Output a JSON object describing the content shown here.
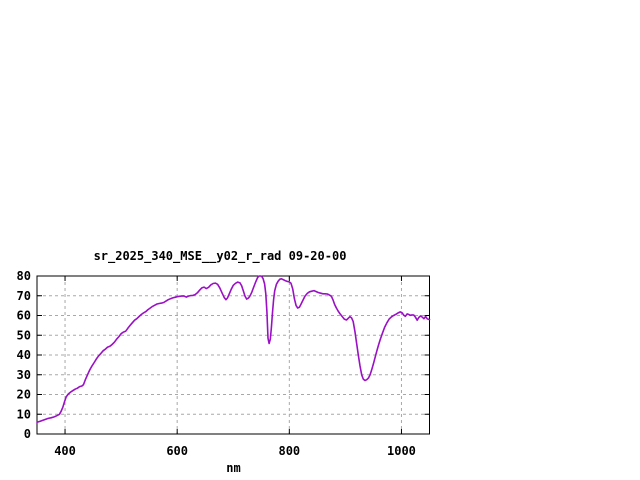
{
  "window": {
    "background_color": "#ffffff"
  },
  "chart_data": {
    "type": "line",
    "title": "sr_2025_340_MSE__y02_r_rad 09-20-00",
    "xlabel": "nm",
    "ylabel": "",
    "xlim": [
      350,
      1050
    ],
    "ylim": [
      0,
      80
    ],
    "xticks": [
      400,
      600,
      800,
      1000
    ],
    "yticks": [
      0,
      10,
      20,
      30,
      40,
      50,
      60,
      70,
      80
    ],
    "grid": true,
    "legend_position": "none",
    "line_color": "#9a10c4",
    "grid_color": "#a8a8a8",
    "axis_color": "#000000",
    "series": [
      {
        "name": "sr_2025_340_MSE__y02_r_rad",
        "x_unit": "nm",
        "points": [
          [
            350,
            5.9
          ],
          [
            355,
            6.4
          ],
          [
            360,
            6.9
          ],
          [
            365,
            7.4
          ],
          [
            370,
            7.9
          ],
          [
            375,
            8.2
          ],
          [
            380,
            8.6
          ],
          [
            385,
            9.2
          ],
          [
            390,
            10
          ],
          [
            393,
            11.5
          ],
          [
            396,
            13.5
          ],
          [
            399,
            16.3
          ],
          [
            402,
            18.8
          ],
          [
            406,
            20.3
          ],
          [
            410,
            21.2
          ],
          [
            414,
            22
          ],
          [
            418,
            22.7
          ],
          [
            422,
            23.2
          ],
          [
            426,
            24
          ],
          [
            430,
            24.3
          ],
          [
            433,
            25
          ],
          [
            436,
            27.3
          ],
          [
            440,
            30
          ],
          [
            444,
            32.4
          ],
          [
            448,
            34.5
          ],
          [
            452,
            36.2
          ],
          [
            456,
            38
          ],
          [
            460,
            39.6
          ],
          [
            464,
            40.8
          ],
          [
            468,
            42.2
          ],
          [
            472,
            43
          ],
          [
            476,
            44
          ],
          [
            480,
            44.4
          ],
          [
            484,
            45.3
          ],
          [
            488,
            46.5
          ],
          [
            492,
            48
          ],
          [
            496,
            49.3
          ],
          [
            500,
            50.8
          ],
          [
            504,
            51.6
          ],
          [
            508,
            52
          ],
          [
            512,
            53.5
          ],
          [
            516,
            55
          ],
          [
            520,
            56.3
          ],
          [
            524,
            57.6
          ],
          [
            528,
            58.4
          ],
          [
            532,
            59.5
          ],
          [
            536,
            60.5
          ],
          [
            540,
            61.3
          ],
          [
            544,
            62
          ],
          [
            548,
            63
          ],
          [
            552,
            63.8
          ],
          [
            556,
            64.6
          ],
          [
            560,
            65.2
          ],
          [
            564,
            65.8
          ],
          [
            568,
            66.1
          ],
          [
            572,
            66.3
          ],
          [
            576,
            66.6
          ],
          [
            580,
            67.3
          ],
          [
            584,
            68
          ],
          [
            588,
            68.5
          ],
          [
            592,
            68.9
          ],
          [
            596,
            69.2
          ],
          [
            600,
            69.5
          ],
          [
            604,
            69.7
          ],
          [
            608,
            69.8
          ],
          [
            612,
            69.9
          ],
          [
            616,
            69.3
          ],
          [
            620,
            69.8
          ],
          [
            624,
            70.1
          ],
          [
            628,
            70.2
          ],
          [
            632,
            70.6
          ],
          [
            636,
            71.5
          ],
          [
            640,
            72.8
          ],
          [
            644,
            74
          ],
          [
            648,
            74.4
          ],
          [
            652,
            73.6
          ],
          [
            656,
            74.3
          ],
          [
            660,
            75.5
          ],
          [
            664,
            76.2
          ],
          [
            668,
            76.4
          ],
          [
            672,
            75.8
          ],
          [
            676,
            74
          ],
          [
            680,
            71.5
          ],
          [
            684,
            69
          ],
          [
            687,
            68
          ],
          [
            690,
            69
          ],
          [
            693,
            71
          ],
          [
            696,
            73
          ],
          [
            700,
            75.3
          ],
          [
            704,
            76.3
          ],
          [
            708,
            76.9
          ],
          [
            712,
            76.5
          ],
          [
            715,
            75
          ],
          [
            718,
            72.5
          ],
          [
            721,
            69.8
          ],
          [
            724,
            68.3
          ],
          [
            727,
            68.8
          ],
          [
            730,
            70
          ],
          [
            733,
            71.8
          ],
          [
            736,
            74
          ],
          [
            740,
            77
          ],
          [
            743,
            79
          ],
          [
            745,
            79.8
          ],
          [
            747,
            80
          ],
          [
            749,
            80
          ],
          [
            751,
            79.7
          ],
          [
            753,
            78.8
          ],
          [
            756,
            76
          ],
          [
            758,
            71
          ],
          [
            760,
            62
          ],
          [
            762,
            48.5
          ],
          [
            764,
            45.8
          ],
          [
            766,
            48
          ],
          [
            768,
            54
          ],
          [
            770,
            61.5
          ],
          [
            772,
            68
          ],
          [
            774,
            72.5
          ],
          [
            777,
            75.8
          ],
          [
            780,
            77.3
          ],
          [
            783,
            78.4
          ],
          [
            786,
            78.6
          ],
          [
            789,
            78.2
          ],
          [
            793,
            77.6
          ],
          [
            797,
            77.2
          ],
          [
            800,
            77
          ],
          [
            803,
            76.3
          ],
          [
            806,
            73.5
          ],
          [
            809,
            68.5
          ],
          [
            812,
            65
          ],
          [
            815,
            63.8
          ],
          [
            818,
            64.2
          ],
          [
            821,
            65.8
          ],
          [
            824,
            67.6
          ],
          [
            828,
            69.8
          ],
          [
            832,
            71.2
          ],
          [
            836,
            72
          ],
          [
            840,
            72.3
          ],
          [
            844,
            72.6
          ],
          [
            848,
            72.1
          ],
          [
            852,
            71.6
          ],
          [
            856,
            71.3
          ],
          [
            860,
            71
          ],
          [
            864,
            71
          ],
          [
            868,
            70.9
          ],
          [
            872,
            70.3
          ],
          [
            875,
            69.7
          ],
          [
            878,
            67.8
          ],
          [
            881,
            65.5
          ],
          [
            884,
            63.8
          ],
          [
            887,
            62.3
          ],
          [
            890,
            61
          ],
          [
            894,
            59.6
          ],
          [
            898,
            58.2
          ],
          [
            902,
            57.7
          ],
          [
            905,
            58.6
          ],
          [
            908,
            59.4
          ],
          [
            911,
            58.8
          ],
          [
            914,
            56.9
          ],
          [
            917,
            52
          ],
          [
            920,
            46
          ],
          [
            923,
            40
          ],
          [
            926,
            34.5
          ],
          [
            929,
            30
          ],
          [
            932,
            27.8
          ],
          [
            935,
            27.1
          ],
          [
            938,
            27.5
          ],
          [
            941,
            28.3
          ],
          [
            944,
            30
          ],
          [
            947,
            32.5
          ],
          [
            950,
            35.5
          ],
          [
            953,
            38.8
          ],
          [
            956,
            42
          ],
          [
            959,
            45
          ],
          [
            962,
            47.8
          ],
          [
            966,
            51
          ],
          [
            970,
            54
          ],
          [
            974,
            56.3
          ],
          [
            978,
            58.2
          ],
          [
            982,
            59.3
          ],
          [
            986,
            60
          ],
          [
            990,
            60.6
          ],
          [
            994,
            61.3
          ],
          [
            998,
            61.8
          ],
          [
            1001,
            61.4
          ],
          [
            1004,
            60.2
          ],
          [
            1007,
            59.6
          ],
          [
            1010,
            60.8
          ],
          [
            1013,
            60.5
          ],
          [
            1016,
            60.1
          ],
          [
            1019,
            60.3
          ],
          [
            1022,
            60.2
          ],
          [
            1025,
            59.1
          ],
          [
            1028,
            57.6
          ],
          [
            1031,
            59
          ],
          [
            1034,
            59.8
          ],
          [
            1037,
            59.2
          ],
          [
            1040,
            58.4
          ],
          [
            1043,
            59.5
          ],
          [
            1046,
            58.3
          ],
          [
            1050,
            57.9
          ]
        ]
      }
    ]
  }
}
